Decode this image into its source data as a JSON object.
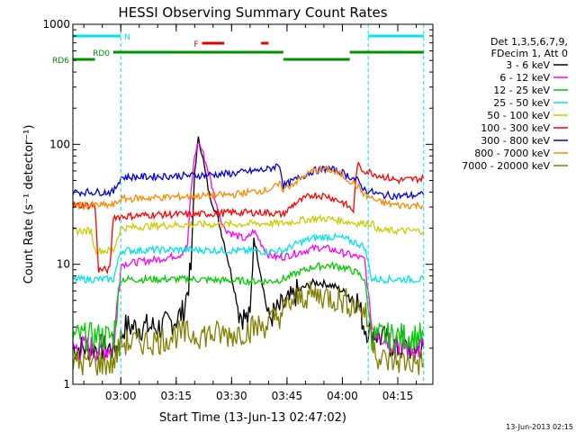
{
  "chart_data": {
    "type": "line",
    "title": "HESSI Observing Summary Count Rates",
    "xlabel": "Start Time (13-Jun-13 02:47:02)",
    "ylabel": "Count Rate (s⁻¹ detector⁻¹)",
    "x_ticks": [
      "03:00",
      "03:15",
      "03:30",
      "03:45",
      "04:00",
      "04:15"
    ],
    "y_ticks": [
      "1",
      "10",
      "100",
      "1000"
    ],
    "x_range": [
      "02:47:02",
      "04:24:30"
    ],
    "ylim": [
      1,
      1000
    ],
    "y_scale": "log",
    "legend_header": [
      "Det 1,3,5,6,7,9,",
      "FDecim 1, Att 0"
    ],
    "legend_position": "right",
    "timestamp": "13-Jun-2013 02:15",
    "flags": [
      {
        "label": "N",
        "color": "#00e5e5",
        "segments": [
          [
            "02:47",
            "03:00"
          ],
          [
            "04:07",
            "04:22"
          ]
        ]
      },
      {
        "label": "F",
        "color": "#e00000",
        "segments": [
          [
            "03:22",
            "03:28"
          ],
          [
            "03:38",
            "03:40"
          ]
        ]
      },
      {
        "label": "RD0",
        "color": "#009000",
        "segments": [
          [
            "02:58",
            "03:44"
          ],
          [
            "04:02",
            "04:22"
          ]
        ]
      },
      {
        "label": "RD6",
        "color": "#009000",
        "segments": [
          [
            "02:47",
            "02:53"
          ],
          [
            "03:44",
            "04:02"
          ]
        ]
      }
    ],
    "series": [
      {
        "name": "3 - 6 keV",
        "color": "#000000",
        "x": [
          "02:47",
          "02:59",
          "03:01",
          "03:09",
          "03:11",
          "03:13",
          "03:15",
          "03:17",
          "03:19",
          "03:20",
          "03:21",
          "03:22",
          "03:23",
          "03:24",
          "03:26",
          "03:28",
          "03:30",
          "03:32",
          "03:34",
          "03:35",
          "03:36",
          "03:38",
          "03:40",
          "03:42",
          "03:44",
          "03:46",
          "03:48",
          "03:50",
          "03:52",
          "03:54",
          "03:56",
          "03:58",
          "04:00",
          "04:02",
          "04:04",
          "04:06",
          "04:10",
          "04:15",
          "04:22"
        ],
        "y": [
          2,
          2,
          3,
          3,
          3,
          3.2,
          3.5,
          4,
          9,
          60,
          110,
          85,
          55,
          38,
          26,
          15,
          8,
          4,
          3.5,
          3.5,
          17,
          8,
          3.5,
          4,
          4.5,
          5,
          6,
          6.5,
          7,
          7,
          6.8,
          6.5,
          6,
          5.5,
          5,
          3,
          2.5,
          2,
          2
        ]
      },
      {
        "name": "6 - 12 keV",
        "color": "#ff00ff",
        "x": [
          "02:47",
          "02:58",
          "03:00",
          "03:05",
          "03:10",
          "03:13",
          "03:16",
          "03:18",
          "03:19",
          "03:20",
          "03:21",
          "03:22",
          "03:24",
          "03:26",
          "03:28",
          "03:30",
          "03:32",
          "03:34",
          "03:36",
          "03:38",
          "03:40",
          "03:42",
          "03:44",
          "03:46",
          "03:48",
          "03:50",
          "03:52",
          "03:54",
          "03:56",
          "03:58",
          "04:00",
          "04:02",
          "04:04",
          "04:06",
          "04:08",
          "04:12",
          "04:18",
          "04:22"
        ],
        "y": [
          2,
          2,
          10,
          10.5,
          11,
          11.5,
          12,
          14,
          40,
          80,
          105,
          90,
          55,
          30,
          20,
          18,
          17,
          16,
          19,
          15,
          12,
          11.5,
          11.5,
          12,
          12.5,
          13,
          13.5,
          13.8,
          13.5,
          13,
          12.5,
          12,
          11.5,
          11,
          3,
          2.5,
          2,
          2
        ]
      },
      {
        "name": "12 - 25 keV",
        "color": "#00cc00",
        "x": [
          "02:47",
          "02:58",
          "03:00",
          "03:10",
          "03:20",
          "03:30",
          "03:40",
          "03:44",
          "03:48",
          "03:52",
          "03:56",
          "04:00",
          "04:04",
          "04:06",
          "04:08",
          "04:22"
        ],
        "y": [
          2.5,
          2.5,
          7.5,
          7.5,
          7.5,
          7.3,
          7.2,
          7.5,
          8.5,
          9.5,
          9.8,
          9.5,
          8.5,
          7.5,
          2.5,
          2.5
        ]
      },
      {
        "name": "25 - 50 keV",
        "color": "#00e5e5",
        "x": [
          "02:47",
          "02:58",
          "03:00",
          "03:10",
          "03:20",
          "03:30",
          "03:40",
          "03:44",
          "03:48",
          "03:52",
          "03:56",
          "04:00",
          "04:04",
          "04:06",
          "04:08",
          "04:22"
        ],
        "y": [
          7.5,
          7.5,
          13,
          13.2,
          13.2,
          13,
          12.8,
          13,
          15,
          16.5,
          17,
          16.5,
          15,
          14,
          7.5,
          7.5
        ]
      },
      {
        "name": "50 - 100 keV",
        "color": "#cccc00",
        "x": [
          "02:47",
          "02:52",
          "02:53",
          "02:58",
          "03:00",
          "03:10",
          "03:20",
          "03:30",
          "03:40",
          "03:44",
          "03:48",
          "03:52",
          "03:56",
          "04:00",
          "04:04",
          "04:08",
          "04:10",
          "04:22"
        ],
        "y": [
          19,
          19,
          13,
          13,
          20,
          21,
          21.5,
          21.5,
          22,
          22,
          23,
          24,
          24,
          23,
          22,
          22,
          19,
          19
        ]
      },
      {
        "name": "100 - 300 keV",
        "color": "#ff0000",
        "x": [
          "02:47",
          "02:53",
          "02:54",
          "02:57",
          "02:58",
          "03:00",
          "03:10",
          "03:20",
          "03:30",
          "03:40",
          "03:44",
          "03:47",
          "03:52",
          "03:56",
          "04:00",
          "04:03",
          "04:04",
          "04:05",
          "04:10",
          "04:15",
          "04:22"
        ],
        "y": [
          31,
          31,
          9,
          9,
          25,
          25,
          26,
          26,
          27,
          27,
          26,
          32,
          38,
          37,
          33,
          28,
          68,
          62,
          55,
          50,
          52
        ]
      },
      {
        "name": "300 - 800 keV",
        "color": "#0000dd",
        "x": [
          "02:47",
          "02:58",
          "03:00",
          "03:10",
          "03:20",
          "03:30",
          "03:40",
          "03:43",
          "03:44",
          "03:48",
          "03:52",
          "03:56",
          "04:00",
          "04:04",
          "04:06",
          "04:10",
          "04:15",
          "04:22"
        ],
        "y": [
          40,
          40,
          53,
          54,
          55,
          57,
          62,
          68,
          45,
          52,
          60,
          63,
          58,
          50,
          42,
          38,
          37,
          38
        ]
      },
      {
        "name": "800 - 7000 keV",
        "color": "#ff8800",
        "x": [
          "02:47",
          "02:58",
          "03:00",
          "03:10",
          "03:20",
          "03:30",
          "03:40",
          "03:43",
          "03:44",
          "03:48",
          "03:52",
          "03:56",
          "04:00",
          "04:04",
          "04:06",
          "04:10",
          "04:15",
          "04:22"
        ],
        "y": [
          31,
          31,
          35,
          36,
          37,
          38,
          42,
          46,
          42,
          50,
          60,
          62,
          55,
          45,
          38,
          33,
          31,
          31
        ]
      },
      {
        "name": "7000 - 20000 keV",
        "color": "#808000",
        "x": [
          "02:47",
          "02:58",
          "03:00",
          "03:10",
          "03:15",
          "03:20",
          "03:30",
          "03:40",
          "03:44",
          "03:46",
          "03:50",
          "03:55",
          "04:00",
          "04:04",
          "04:06",
          "04:10",
          "04:22"
        ],
        "y": [
          1.5,
          1.5,
          2.2,
          2.3,
          2.6,
          2.6,
          2.6,
          3.2,
          4,
          4.8,
          5.5,
          5.5,
          5,
          4.5,
          4,
          1.6,
          1.5
        ]
      }
    ]
  }
}
